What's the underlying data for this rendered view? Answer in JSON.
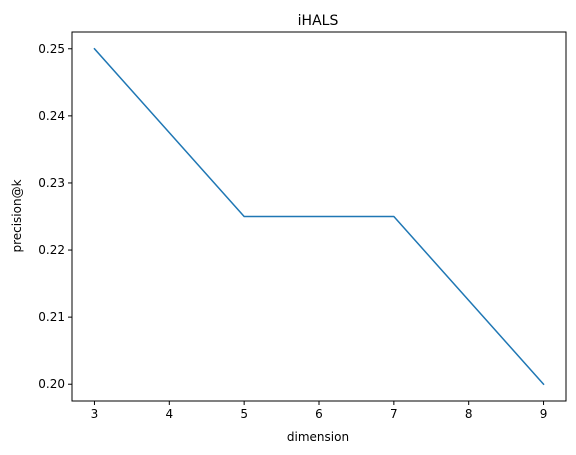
{
  "chart_data": {
    "type": "line",
    "title": "iHALS",
    "xlabel": "dimension",
    "ylabel": "precision@k",
    "x": [
      3,
      5,
      7,
      9
    ],
    "series": [
      {
        "values": [
          0.25,
          0.225,
          0.225,
          0.2
        ],
        "color": "#1f77b4"
      }
    ],
    "xlim": [
      2.7,
      9.3
    ],
    "ylim": [
      0.1975,
      0.2525
    ],
    "xticks": [
      "3",
      "4",
      "5",
      "6",
      "7",
      "8",
      "9"
    ],
    "yticks": [
      "0.20",
      "0.21",
      "0.22",
      "0.23",
      "0.24",
      "0.25"
    ],
    "grid": false,
    "legend": "none"
  }
}
